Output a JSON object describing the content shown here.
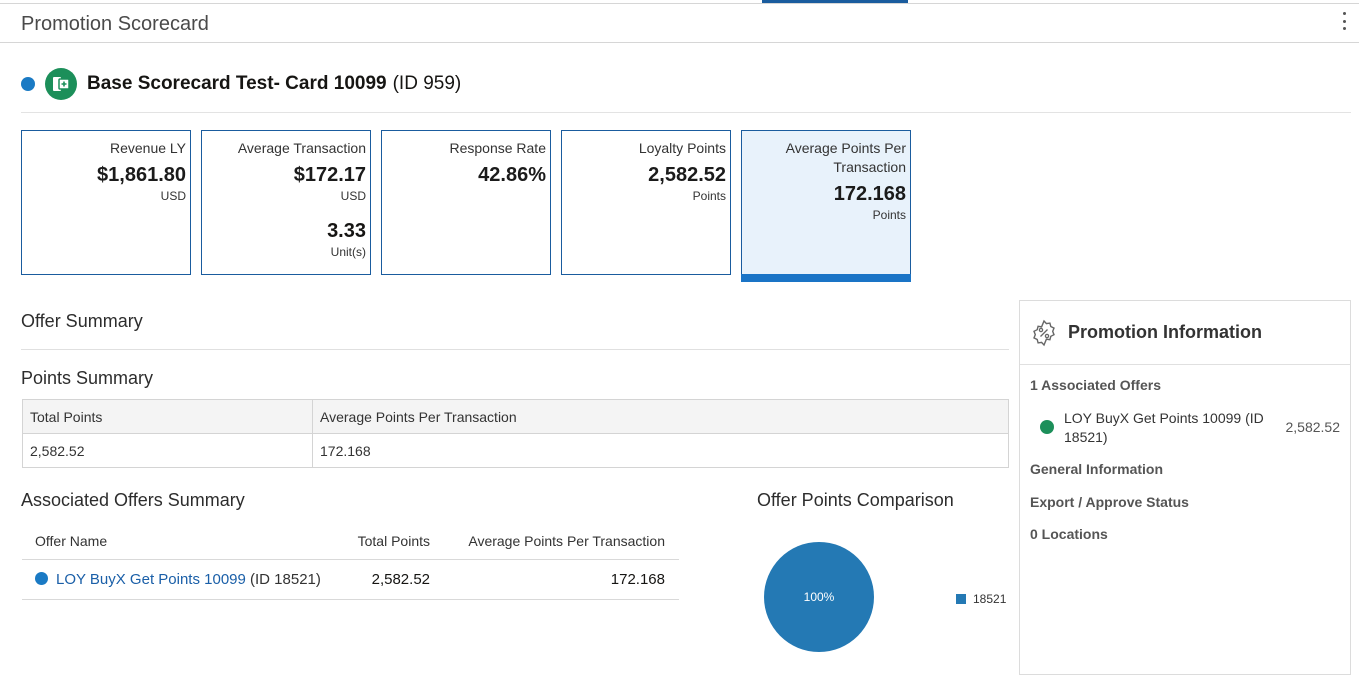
{
  "header": {
    "title": "Promotion Scorecard"
  },
  "scorecard": {
    "name": "Base Scorecard Test- Card 10099",
    "id_label": "(ID 959)"
  },
  "kpis": [
    {
      "label": "Revenue LY",
      "value": "$1,861.80",
      "unit": "USD"
    },
    {
      "label": "Average Transaction",
      "value": "$172.17",
      "unit": "USD",
      "value2": "3.33",
      "unit2": "Unit(s)"
    },
    {
      "label": "Response Rate",
      "value": "42.86%"
    },
    {
      "label": "Loyalty Points",
      "value": "2,582.52",
      "unit": "Points"
    },
    {
      "label": "Average Points Per Transaction",
      "value": "172.168",
      "unit": "Points"
    }
  ],
  "offer_summary": {
    "title": "Offer Summary"
  },
  "points_summary": {
    "title": "Points Summary",
    "headers": [
      "Total Points",
      "Average Points Per Transaction"
    ],
    "row": [
      "2,582.52",
      "172.168"
    ]
  },
  "associated_offers": {
    "title": "Associated Offers Summary",
    "headers": [
      "Offer Name",
      "Total Points",
      "Average Points Per Transaction"
    ],
    "rows": [
      {
        "name": "LOY BuyX Get Points 10099",
        "id_label": "(ID 18521)",
        "total_points": "2,582.52",
        "avg_points": "172.168"
      }
    ]
  },
  "comparison": {
    "title": "Offer Points Comparison",
    "slice_label": "100%",
    "legend": "18521"
  },
  "chart_data": {
    "type": "pie",
    "title": "Offer Points Comparison",
    "categories": [
      "18521"
    ],
    "values": [
      100
    ],
    "colors": [
      "#2479b4"
    ]
  },
  "promotion_info": {
    "title": "Promotion Information",
    "associated_offers_label": "1 Associated Offers",
    "offers": [
      {
        "name": "LOY BuyX Get Points 10099 (ID 18521)",
        "points": "2,582.52"
      }
    ],
    "general_information": "General Information",
    "export_status": "Export / Approve Status",
    "locations": "0 Locations"
  }
}
